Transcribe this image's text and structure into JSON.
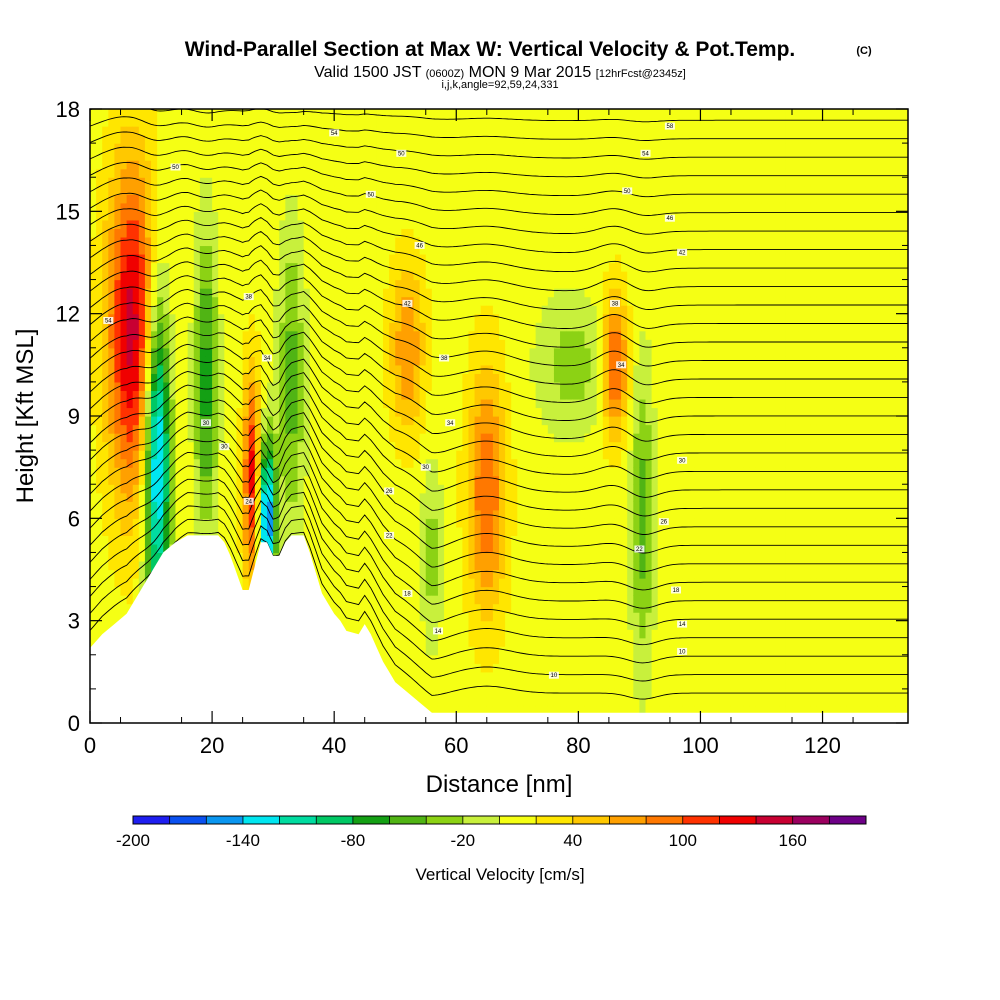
{
  "title": {
    "main": "Wind-Parallel Section at Max W: Vertical Velocity & Pot.Temp.",
    "copyright": "(C)",
    "valid_prefix": "Valid 1500 JST ",
    "valid_utc": "(0600Z)",
    "valid_date": " MON 9 Mar 2015 ",
    "forecast": "[12hrFcst@2345z]",
    "section_params": "i,j,k,angle=92,59,24,331"
  },
  "chart_data": {
    "type": "heatmap",
    "xlabel": "Distance [nm]",
    "ylabel": "Height [Kft MSL]",
    "xlim": [
      0,
      134
    ],
    "ylim": [
      0,
      18
    ],
    "x_ticks": [
      0,
      20,
      40,
      60,
      80,
      100,
      120
    ],
    "y_ticks": [
      0,
      3,
      6,
      9,
      12,
      15,
      18
    ],
    "grid": false,
    "filled_field": "Vertical Velocity [cm/s]",
    "contour_field": "Potential Temperature",
    "colorbar": {
      "title": "Vertical Velocity [cm/s]",
      "placement": "bottom",
      "levels": [
        -200,
        -180,
        -160,
        -140,
        -120,
        -100,
        -80,
        -60,
        -40,
        -20,
        0,
        20,
        40,
        60,
        80,
        100,
        120,
        140,
        160,
        180
      ],
      "colors": [
        "#1e1ef0",
        "#0a50f0",
        "#0a96f0",
        "#00e6f0",
        "#00dca0",
        "#00c864",
        "#14a014",
        "#50b414",
        "#8cd214",
        "#c8f03c",
        "#f5ff14",
        "#ffe600",
        "#ffc800",
        "#ffa000",
        "#ff7800",
        "#ff3200",
        "#f00000",
        "#c80032",
        "#9b005f",
        "#6e0087"
      ],
      "tick_labels": [
        -200,
        -140,
        -80,
        -20,
        40,
        100,
        160
      ]
    },
    "background_value": 10,
    "updraft_cores": [
      {
        "x": 7,
        "y": 11.5,
        "sx": 3,
        "sy": 3.5,
        "w": 140
      },
      {
        "x": 26.5,
        "y": 7.2,
        "sx": 1,
        "sy": 2.2,
        "w": 120
      },
      {
        "x": 52,
        "y": 11,
        "sx": 2,
        "sy": 1.8,
        "w": 70
      },
      {
        "x": 65,
        "y": 6.8,
        "sx": 2.2,
        "sy": 2.6,
        "w": 90
      },
      {
        "x": 86,
        "y": 10.5,
        "sx": 1.5,
        "sy": 1.5,
        "w": 100
      }
    ],
    "downdraft_cores": [
      {
        "x": 11,
        "y": 8,
        "sx": 1.5,
        "sy": 3.5,
        "w": -180
      },
      {
        "x": 19,
        "y": 10,
        "sx": 1.3,
        "sy": 3,
        "w": -80
      },
      {
        "x": 29,
        "y": 6,
        "sx": 1,
        "sy": 1.6,
        "w": -180
      },
      {
        "x": 33,
        "y": 10,
        "sx": 1.5,
        "sy": 3,
        "w": -60
      },
      {
        "x": 56,
        "y": 5,
        "sx": 1.2,
        "sy": 1.8,
        "w": -40
      },
      {
        "x": 79,
        "y": 10.5,
        "sx": 4,
        "sy": 1.4,
        "w": -40
      },
      {
        "x": 90.5,
        "y": 6,
        "sx": 1.3,
        "sy": 3,
        "w": -60
      }
    ],
    "terrain": [
      [
        0,
        2.2
      ],
      [
        2,
        2.6
      ],
      [
        4,
        2.9
      ],
      [
        6,
        3.2
      ],
      [
        8,
        3.8
      ],
      [
        10,
        4.4
      ],
      [
        12,
        5.0
      ],
      [
        14,
        5.3
      ],
      [
        16,
        5.5
      ],
      [
        21,
        5.5
      ],
      [
        22,
        5.3
      ],
      [
        23,
        4.9
      ],
      [
        24,
        4.4
      ],
      [
        25,
        3.9
      ],
      [
        26,
        3.9
      ],
      [
        27,
        4.6
      ],
      [
        28,
        5.3
      ],
      [
        29,
        5.3
      ],
      [
        30,
        4.9
      ],
      [
        31,
        4.9
      ],
      [
        32,
        5.3
      ],
      [
        33,
        5.5
      ],
      [
        35,
        5.5
      ],
      [
        36,
        5.0
      ],
      [
        37,
        4.4
      ],
      [
        38,
        3.8
      ],
      [
        39,
        3.5
      ],
      [
        40,
        3.2
      ],
      [
        41,
        3.0
      ],
      [
        42,
        2.7
      ],
      [
        44,
        2.6
      ],
      [
        45,
        2.9
      ],
      [
        46,
        2.6
      ],
      [
        47,
        2.2
      ],
      [
        48,
        1.8
      ],
      [
        49,
        1.5
      ],
      [
        50,
        1.2
      ],
      [
        52,
        0.9
      ],
      [
        54,
        0.6
      ],
      [
        56,
        0.3
      ],
      [
        58,
        0.3
      ],
      [
        134,
        0.3
      ]
    ],
    "contour_labels": [
      {
        "x": 3,
        "y": 11.8,
        "text": "54"
      },
      {
        "x": 14,
        "y": 16.3,
        "text": "50"
      },
      {
        "x": 26,
        "y": 12.5,
        "text": "38"
      },
      {
        "x": 29,
        "y": 10.7,
        "text": "34"
      },
      {
        "x": 19,
        "y": 8.8,
        "text": "30"
      },
      {
        "x": 22,
        "y": 8.1,
        "text": "30"
      },
      {
        "x": 26,
        "y": 6.5,
        "text": "24"
      },
      {
        "x": 40,
        "y": 17.3,
        "text": "54"
      },
      {
        "x": 46,
        "y": 15.5,
        "text": "50"
      },
      {
        "x": 51,
        "y": 16.7,
        "text": "50"
      },
      {
        "x": 54,
        "y": 14,
        "text": "46"
      },
      {
        "x": 52,
        "y": 12.3,
        "text": "42"
      },
      {
        "x": 58,
        "y": 10.7,
        "text": "38"
      },
      {
        "x": 59,
        "y": 8.8,
        "text": "34"
      },
      {
        "x": 55,
        "y": 7.5,
        "text": "30"
      },
      {
        "x": 49,
        "y": 6.8,
        "text": "26"
      },
      {
        "x": 49,
        "y": 5.5,
        "text": "22"
      },
      {
        "x": 52,
        "y": 3.8,
        "text": "18"
      },
      {
        "x": 57,
        "y": 2.7,
        "text": "14"
      },
      {
        "x": 76,
        "y": 1.4,
        "text": "10"
      },
      {
        "x": 95,
        "y": 17.5,
        "text": "58"
      },
      {
        "x": 91,
        "y": 16.7,
        "text": "54"
      },
      {
        "x": 88,
        "y": 15.6,
        "text": "50"
      },
      {
        "x": 95,
        "y": 14.8,
        "text": "46"
      },
      {
        "x": 97,
        "y": 13.8,
        "text": "42"
      },
      {
        "x": 86,
        "y": 12.3,
        "text": "38"
      },
      {
        "x": 87,
        "y": 10.5,
        "text": "34"
      },
      {
        "x": 97,
        "y": 7.7,
        "text": "30"
      },
      {
        "x": 94,
        "y": 5.9,
        "text": "26"
      },
      {
        "x": 90,
        "y": 5.1,
        "text": "22"
      },
      {
        "x": 96,
        "y": 3.9,
        "text": "18"
      },
      {
        "x": 97,
        "y": 2.9,
        "text": "14"
      },
      {
        "x": 97,
        "y": 2.1,
        "text": "10"
      }
    ]
  }
}
